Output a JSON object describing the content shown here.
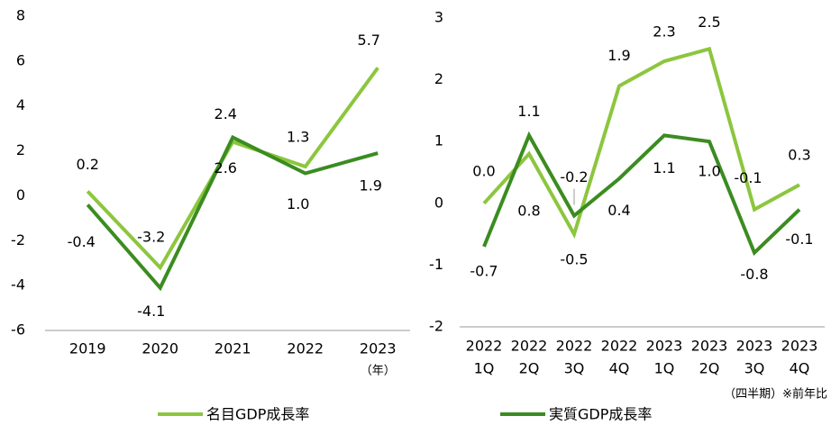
{
  "chart_data": [
    {
      "type": "line",
      "categories": [
        "2019",
        "2020",
        "2021",
        "2022",
        "2023"
      ],
      "series": [
        {
          "name": "名目GDP成長率",
          "color": "#8cc63e",
          "values": [
            0.2,
            -3.2,
            2.4,
            1.3,
            5.7
          ],
          "value_labels": [
            "0.2",
            "-3.2",
            "2.4",
            "1.3",
            "5.7"
          ]
        },
        {
          "name": "実質GDP成長率",
          "color": "#3b8c20",
          "values": [
            -0.4,
            -4.1,
            2.6,
            1.0,
            1.9
          ],
          "value_labels": [
            "-0.4",
            "-4.1",
            "2.6",
            "1.0",
            "1.9"
          ]
        }
      ],
      "ylim": [
        -6,
        8
      ],
      "yticks": [
        -6,
        -4,
        -2,
        0,
        2,
        4,
        6,
        8
      ],
      "x_unit": "（年）"
    },
    {
      "type": "line",
      "categories": [
        [
          "2022",
          "1Q"
        ],
        [
          "2022",
          "2Q"
        ],
        [
          "2022",
          "3Q"
        ],
        [
          "2022",
          "4Q"
        ],
        [
          "2023",
          "1Q"
        ],
        [
          "2023",
          "2Q"
        ],
        [
          "2023",
          "3Q"
        ],
        [
          "2023",
          "4Q"
        ]
      ],
      "series": [
        {
          "color": "#8cc63e",
          "values": [
            0.0,
            0.8,
            -0.5,
            1.9,
            2.3,
            2.5,
            -0.1,
            0.3
          ],
          "value_labels": [
            "0.0",
            "0.8",
            "-0.5",
            "1.9",
            "2.3",
            "2.5",
            "-0.1",
            "0.3"
          ]
        },
        {
          "color": "#3b8c20",
          "values": [
            -0.7,
            1.1,
            -0.2,
            0.4,
            1.1,
            1.0,
            -0.8,
            -0.1
          ],
          "value_labels": [
            "-0.7",
            "1.1",
            "-0.2",
            "0.4",
            "1.1",
            "1.0",
            "-0.8",
            "-0.1"
          ]
        }
      ],
      "ylim": [
        -2,
        3
      ],
      "yticks": [
        -2,
        -1,
        0,
        1,
        2,
        3
      ],
      "note": "（四半期）※前年比"
    }
  ]
}
